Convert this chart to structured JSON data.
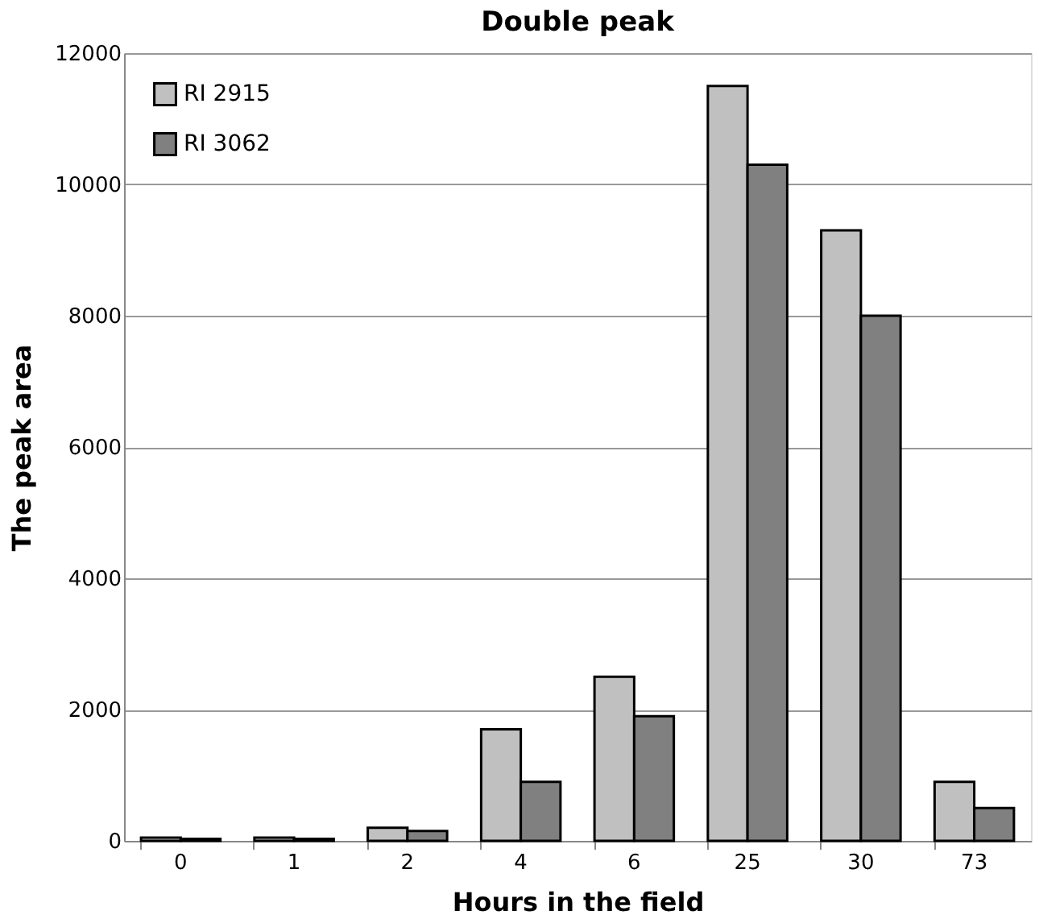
{
  "chart_data": {
    "type": "bar",
    "title": "Double peak",
    "xlabel": "Hours in the field",
    "ylabel": "The peak area",
    "categories": [
      "0",
      "1",
      "2",
      "4",
      "6",
      "25",
      "30",
      "73"
    ],
    "series": [
      {
        "name": "RI 2915",
        "color": "#c0c0c0",
        "values": [
          50,
          50,
          200,
          1700,
          2500,
          11500,
          9300,
          900
        ]
      },
      {
        "name": "RI 3062",
        "color": "#808080",
        "values": [
          30,
          30,
          150,
          900,
          1900,
          10300,
          8000,
          500
        ]
      }
    ],
    "ylim": [
      0,
      12000
    ],
    "yticks": [
      0,
      2000,
      4000,
      6000,
      8000,
      10000,
      12000
    ],
    "grid": "y",
    "legend": "top left"
  }
}
